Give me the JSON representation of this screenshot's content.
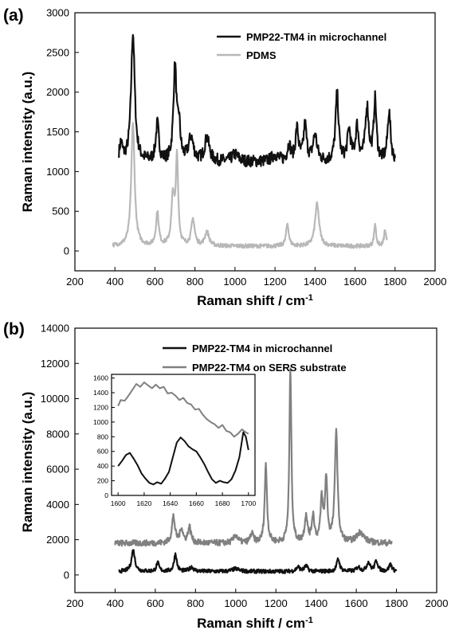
{
  "colors": {
    "microchannel": "#111111",
    "pdms": "#b8b8b8",
    "sers": "#808080"
  },
  "chart_data": [
    {
      "panel": "(a)",
      "type": "line",
      "xlabel": "Raman shift / cm",
      "xlabel_sup": "-1",
      "ylabel": "Raman intensity (a.u.)",
      "xlim": [
        200,
        2000
      ],
      "ylim": [
        -250,
        3000
      ],
      "xticks": [
        "200",
        "400",
        "600",
        "800",
        "1000",
        "1200",
        "1400",
        "1600",
        "1800",
        "2000"
      ],
      "yticks": [
        "0",
        "500",
        "1000",
        "1500",
        "2000",
        "2500",
        "3000"
      ],
      "legend_position": "top-right",
      "series": [
        {
          "name": "PMP22-TM4 in microchannel",
          "color_key": "microchannel",
          "x_start": 420,
          "x_end": 1800,
          "baseline": 1120,
          "noise": 75,
          "peaks": [
            [
              430,
              220,
              8
            ],
            [
              490,
              1620,
              11
            ],
            [
              612,
              470,
              9
            ],
            [
              700,
              1180,
              9
            ],
            [
              720,
              420,
              8
            ],
            [
              780,
              300,
              14
            ],
            [
              860,
              300,
              14
            ],
            [
              1000,
              90,
              20
            ],
            [
              1200,
              80,
              20
            ],
            [
              1270,
              200,
              10
            ],
            [
              1310,
              400,
              9
            ],
            [
              1350,
              450,
              9
            ],
            [
              1400,
              330,
              12
            ],
            [
              1510,
              850,
              9
            ],
            [
              1570,
              380,
              10
            ],
            [
              1610,
              420,
              9
            ],
            [
              1660,
              680,
              10
            ],
            [
              1700,
              760,
              8
            ],
            [
              1770,
              620,
              9
            ]
          ]
        },
        {
          "name": "PDMS",
          "color_key": "pdms",
          "x_start": 390,
          "x_end": 1760,
          "baseline": 60,
          "noise": 25,
          "peaks": [
            [
              490,
              1550,
              10
            ],
            [
              612,
              420,
              8
            ],
            [
              690,
              600,
              9
            ],
            [
              710,
              1100,
              7
            ],
            [
              790,
              330,
              10
            ],
            [
              860,
              180,
              12
            ],
            [
              1262,
              280,
              8
            ],
            [
              1410,
              530,
              12
            ],
            [
              1700,
              280,
              6
            ],
            [
              1750,
              200,
              6
            ]
          ]
        }
      ]
    },
    {
      "panel": "(b)",
      "type": "line",
      "xlabel": "Raman shift / cm",
      "xlabel_sup": "-1",
      "ylabel": "Raman intensity (a.u.)",
      "xlim": [
        200,
        2000
      ],
      "ylim": [
        -1000,
        14000
      ],
      "xticks": [
        "200",
        "400",
        "600",
        "800",
        "1000",
        "1200",
        "1400",
        "1600",
        "1800",
        "2000"
      ],
      "yticks": [
        "0",
        "2000",
        "4000",
        "6000",
        "8000",
        "10000",
        "12000",
        "14000"
      ],
      "legend_position": "top-right",
      "series": [
        {
          "name": "PMP22-TM4 in microchannel",
          "color_key": "microchannel",
          "x_start": 420,
          "x_end": 1800,
          "baseline": 200,
          "noise": 110,
          "peaks": [
            [
              490,
              1200,
              10
            ],
            [
              612,
              480,
              8
            ],
            [
              700,
              1000,
              8
            ],
            [
              780,
              250,
              12
            ],
            [
              1000,
              150,
              20
            ],
            [
              1310,
              250,
              10
            ],
            [
              1350,
              300,
              10
            ],
            [
              1510,
              700,
              9
            ],
            [
              1610,
              250,
              10
            ],
            [
              1660,
              500,
              10
            ],
            [
              1700,
              600,
              9
            ],
            [
              1770,
              400,
              9
            ]
          ]
        },
        {
          "name": "PMP22-TM4 on SERS substrate",
          "color_key": "sers",
          "x_start": 400,
          "x_end": 1780,
          "baseline": 1800,
          "noise": 170,
          "peaks": [
            [
              690,
              1500,
              9
            ],
            [
              730,
              800,
              9
            ],
            [
              770,
              900,
              9
            ],
            [
              1000,
              450,
              12
            ],
            [
              1080,
              500,
              10
            ],
            [
              1150,
              4400,
              7
            ],
            [
              1272,
              9900,
              6
            ],
            [
              1350,
              1500,
              8
            ],
            [
              1385,
              1500,
              8
            ],
            [
              1428,
              2400,
              7
            ],
            [
              1450,
              3600,
              7
            ],
            [
              1500,
              6400,
              8
            ],
            [
              1620,
              600,
              22
            ]
          ]
        }
      ],
      "inset": {
        "xlim": [
          1595,
          1705
        ],
        "ylim": [
          0,
          1650
        ],
        "xticks": [
          "1600",
          "1620",
          "1640",
          "1660",
          "1680",
          "1700"
        ],
        "yticks": [
          "0",
          "200",
          "400",
          "600",
          "800",
          "1000",
          "1200",
          "1400",
          "1600"
        ],
        "series": [
          {
            "color_key": "sers",
            "x": [
              1600,
              1602,
              1605,
              1608,
              1611,
              1614,
              1617,
              1620,
              1623,
              1626,
              1629,
              1632,
              1635,
              1638,
              1641,
              1644,
              1647,
              1650,
              1653,
              1656,
              1659,
              1662,
              1665,
              1668,
              1671,
              1674,
              1677,
              1680,
              1683,
              1686,
              1689,
              1692,
              1695,
              1698,
              1700
            ],
            "y": [
              1220,
              1300,
              1290,
              1360,
              1440,
              1520,
              1480,
              1540,
              1500,
              1460,
              1510,
              1460,
              1480,
              1390,
              1400,
              1360,
              1300,
              1330,
              1260,
              1240,
              1170,
              1180,
              1100,
              1040,
              1000,
              970,
              920,
              960,
              880,
              860,
              800,
              840,
              900,
              860,
              840
            ]
          },
          {
            "color_key": "microchannel",
            "x": [
              1600,
              1603,
              1606,
              1609,
              1612,
              1615,
              1618,
              1621,
              1624,
              1627,
              1630,
              1633,
              1636,
              1639,
              1642,
              1645,
              1648,
              1651,
              1654,
              1657,
              1660,
              1663,
              1666,
              1669,
              1672,
              1675,
              1678,
              1681,
              1684,
              1687,
              1690,
              1693,
              1696,
              1698,
              1700
            ],
            "y": [
              400,
              470,
              550,
              580,
              500,
              410,
              300,
              230,
              170,
              150,
              180,
              160,
              230,
              320,
              520,
              720,
              790,
              740,
              670,
              630,
              600,
              520,
              430,
              320,
              220,
              170,
              200,
              180,
              170,
              220,
              340,
              520,
              860,
              800,
              620
            ]
          }
        ]
      }
    }
  ]
}
